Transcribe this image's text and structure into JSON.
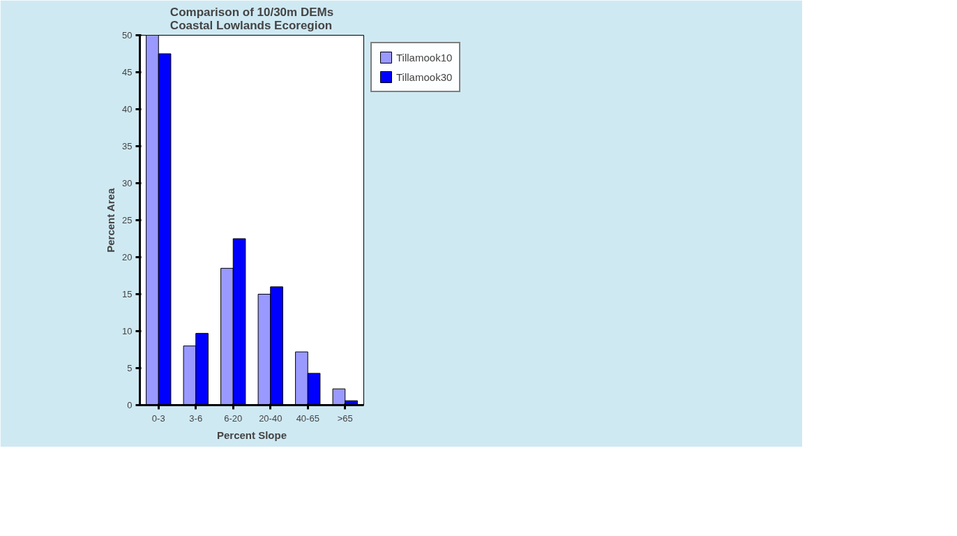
{
  "chart_data": {
    "type": "bar",
    "title": "Comparison of 10/30m DEMs\nCoastal Lowlands Ecoregion",
    "xlabel": "Percent Slope",
    "ylabel": "Percent Area",
    "categories": [
      "0-3",
      "3-6",
      "6-20",
      "20-40",
      "40-65",
      ">65"
    ],
    "series": [
      {
        "name": "Tillamook10",
        "color": "#9999ff",
        "values": [
          50,
          8,
          18.5,
          15,
          7.2,
          2.2
        ]
      },
      {
        "name": "Tillamook30",
        "color": "#0000ff",
        "values": [
          47.5,
          9.7,
          22.5,
          16,
          4.3,
          0.6
        ]
      }
    ],
    "ylim": [
      0,
      50
    ],
    "yticks": [
      0,
      5,
      10,
      15,
      20,
      25,
      30,
      35,
      40,
      45,
      50
    ],
    "grid": false,
    "legend": "top right"
  }
}
